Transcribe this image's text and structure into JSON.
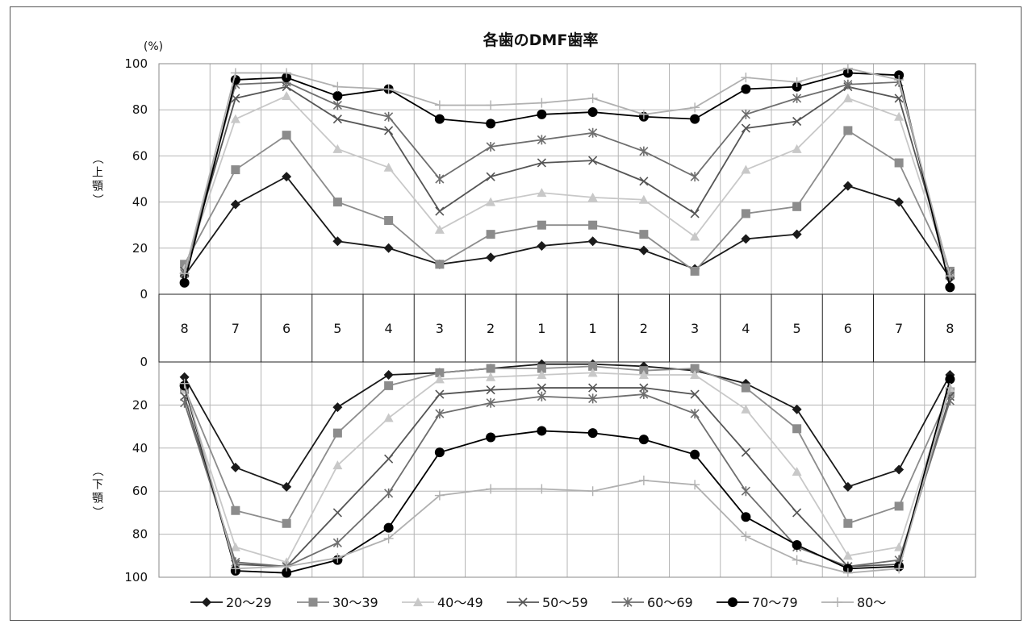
{
  "chart_data": {
    "type": "line",
    "title": "各歯のDMF歯率",
    "unit_label": "(%)",
    "upper_ylabel": "（上顎）",
    "lower_ylabel": "（下顎）",
    "categories": [
      "8",
      "7",
      "6",
      "5",
      "4",
      "3",
      "2",
      "1",
      "1",
      "2",
      "3",
      "4",
      "5",
      "6",
      "7",
      "8"
    ],
    "ylim": [
      0,
      100
    ],
    "y_ticks": [
      "0",
      "20",
      "40",
      "60",
      "80",
      "100"
    ],
    "grid": true,
    "legend_position": "bottom",
    "upper": {
      "series": [
        {
          "name": "20〜29",
          "color": "#1a1a1a",
          "marker": "diamond",
          "values": [
            8,
            39,
            51,
            23,
            20,
            13,
            16,
            21,
            23,
            19,
            11,
            24,
            26,
            47,
            40,
            7
          ]
        },
        {
          "name": "30〜39",
          "color": "#8c8c8c",
          "marker": "square",
          "values": [
            13,
            54,
            69,
            40,
            32,
            13,
            26,
            30,
            30,
            26,
            10,
            35,
            38,
            71,
            57,
            10
          ]
        },
        {
          "name": "40〜49",
          "color": "#c8c8c8",
          "marker": "triangle",
          "values": [
            11,
            76,
            86,
            63,
            55,
            28,
            40,
            44,
            42,
            41,
            25,
            54,
            63,
            85,
            77,
            9
          ]
        },
        {
          "name": "50〜59",
          "color": "#555555",
          "marker": "x",
          "values": [
            10,
            85,
            90,
            76,
            71,
            36,
            51,
            57,
            58,
            49,
            35,
            72,
            75,
            90,
            85,
            9
          ]
        },
        {
          "name": "60〜69",
          "color": "#6e6e6e",
          "marker": "asterisk",
          "values": [
            9,
            91,
            92,
            82,
            77,
            50,
            64,
            67,
            70,
            62,
            51,
            78,
            85,
            91,
            92,
            8
          ]
        },
        {
          "name": "70〜79",
          "color": "#000000",
          "marker": "circle",
          "values": [
            5,
            93,
            94,
            86,
            89,
            76,
            74,
            78,
            79,
            77,
            76,
            89,
            90,
            96,
            95,
            3
          ]
        },
        {
          "name": "80〜",
          "color": "#b0b0b0",
          "marker": "plus",
          "values": [
            9,
            96,
            96,
            90,
            89,
            82,
            82,
            83,
            85,
            78,
            81,
            94,
            92,
            98,
            93,
            8
          ]
        }
      ]
    },
    "lower": {
      "series": [
        {
          "name": "20〜29",
          "color": "#1a1a1a",
          "marker": "diamond",
          "values": [
            7,
            49,
            58,
            21,
            6,
            5,
            3,
            1,
            1,
            2,
            4,
            10,
            22,
            58,
            50,
            6
          ]
        },
        {
          "name": "30〜39",
          "color": "#8c8c8c",
          "marker": "square",
          "values": [
            12,
            69,
            75,
            33,
            11,
            5,
            3,
            3,
            2,
            4,
            3,
            12,
            31,
            75,
            67,
            14
          ]
        },
        {
          "name": "40〜49",
          "color": "#c8c8c8",
          "marker": "triangle",
          "values": [
            13,
            86,
            93,
            48,
            26,
            8,
            7,
            6,
            5,
            6,
            6,
            22,
            51,
            90,
            86,
            12
          ]
        },
        {
          "name": "50〜59",
          "color": "#555555",
          "marker": "x",
          "values": [
            16,
            94,
            95,
            70,
            45,
            15,
            13,
            12,
            12,
            12,
            15,
            42,
            70,
            95,
            94,
            16
          ]
        },
        {
          "name": "60〜69",
          "color": "#6e6e6e",
          "marker": "asterisk",
          "values": [
            19,
            93,
            95,
            84,
            61,
            24,
            19,
            16,
            17,
            15,
            24,
            60,
            86,
            95,
            92,
            18
          ]
        },
        {
          "name": "70〜79",
          "color": "#000000",
          "marker": "circle",
          "values": [
            11,
            97,
            98,
            92,
            77,
            42,
            35,
            32,
            33,
            36,
            43,
            72,
            85,
            96,
            95,
            8
          ]
        },
        {
          "name": "80〜",
          "color": "#b0b0b0",
          "marker": "plus",
          "values": [
            10,
            96,
            95,
            91,
            82,
            62,
            59,
            59,
            60,
            55,
            57,
            81,
            92,
            98,
            96,
            12
          ]
        }
      ]
    }
  }
}
